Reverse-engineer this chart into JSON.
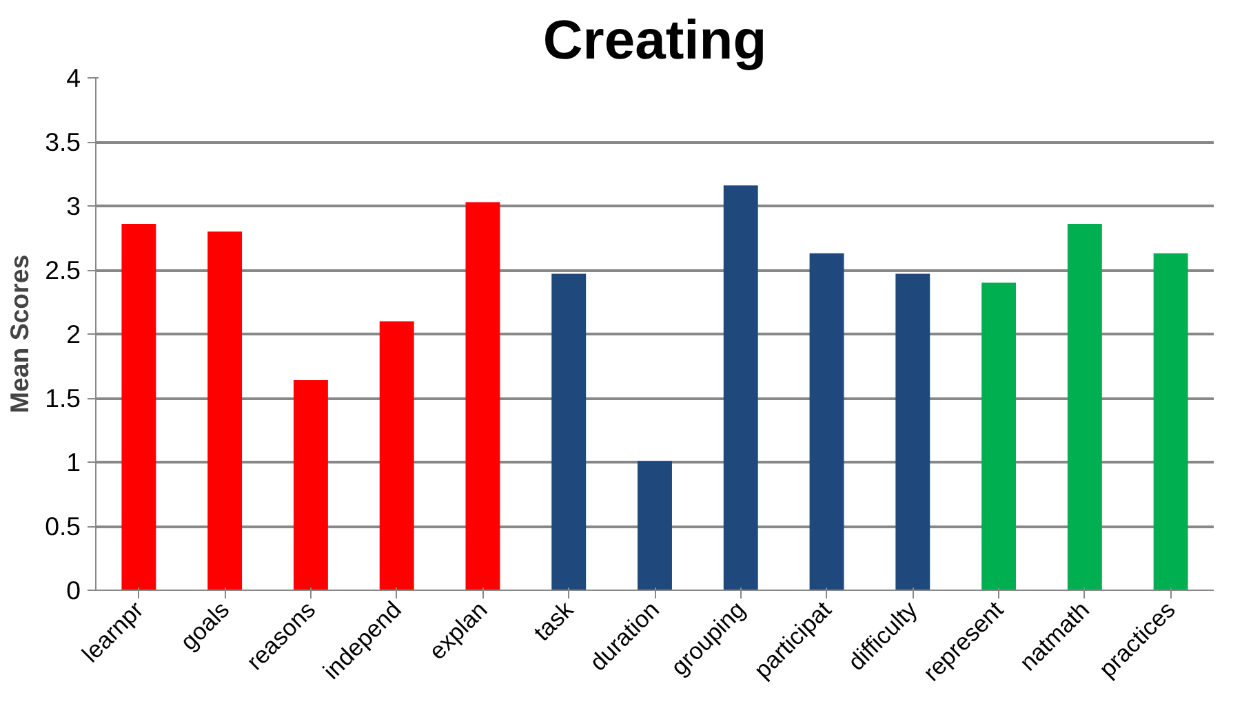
{
  "chart_data": {
    "type": "bar",
    "title": "Creating",
    "ylabel": "Mean Scores",
    "categories": [
      "learnpr",
      "goals",
      "reasons",
      "independ",
      "explan",
      "task",
      "duration",
      "grouping",
      "participat",
      "difficulty",
      "represent",
      "natmath",
      "practices"
    ],
    "values": [
      2.86,
      2.8,
      1.64,
      2.1,
      3.03,
      2.47,
      1.01,
      3.16,
      2.63,
      2.47,
      2.4,
      2.86,
      2.63
    ],
    "colors": [
      "#ff0000",
      "#ff0000",
      "#ff0000",
      "#ff0000",
      "#ff0000",
      "#1f497d",
      "#1f497d",
      "#1f497d",
      "#1f497d",
      "#1f497d",
      "#00b050",
      "#00b050",
      "#00b050"
    ],
    "ylim": [
      0,
      4
    ],
    "yticks": [
      0,
      0.5,
      1,
      1.5,
      2,
      2.5,
      3,
      3.5,
      4
    ],
    "grid": "y"
  }
}
